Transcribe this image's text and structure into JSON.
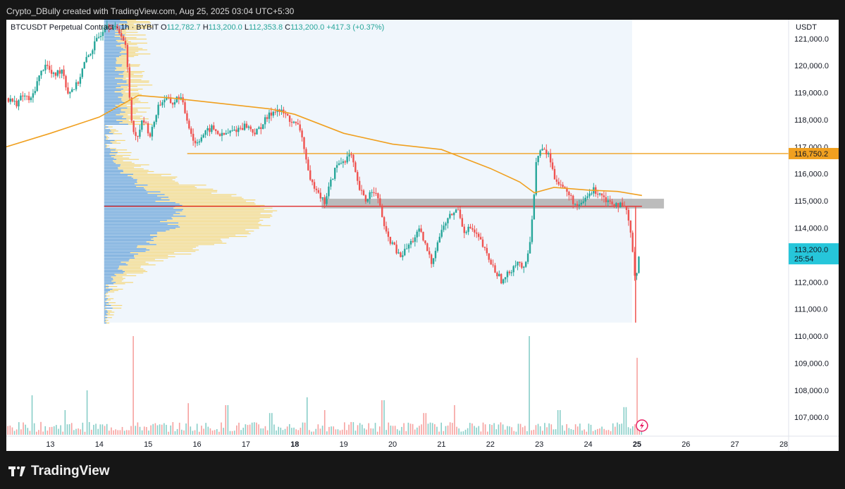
{
  "header": {
    "credit": "Crypto_DBully created with TradingView.com, Aug 25, 2025 03:04 UTC+5:30"
  },
  "legend": {
    "symbol": "BTCUSDT Perpetual Contract · 1h · BYBIT",
    "open_label": "O",
    "open": "112,782.7",
    "high_label": "H",
    "high": "113,200.0",
    "low_label": "L",
    "low": "112,353.8",
    "close_label": "C",
    "close": "113,200.0",
    "change": "+417.3 (+0.37%)"
  },
  "footer": {
    "brand": "TradingView"
  },
  "colors": {
    "up": "#26a69a",
    "down": "#ef5350",
    "ma": "#f0a020",
    "level": "#f0a020",
    "poc": "#e03c3c",
    "zone": "#b0b0b0",
    "profile_up": "#5b9bd5",
    "profile_down": "#f5d77a",
    "last_price": "#26c6da"
  },
  "chart_data": {
    "type": "candlestick",
    "currency": "USDT",
    "y_ticks": [
      121000,
      120000,
      119000,
      118000,
      117000,
      116000,
      115000,
      114000,
      113000,
      112000,
      111000,
      110000,
      109000,
      108000,
      107000
    ],
    "y_tick_labels": [
      "121,000.0",
      "120,000.0",
      "119,000.0",
      "118,000.0",
      "117,000.0",
      "116,000.0",
      "115,000.0",
      "114,000.0",
      "113,000.0",
      "112,000.0",
      "111,000.0",
      "110,000.0",
      "109,000.0",
      "108,000.0",
      "107,000.0"
    ],
    "ylim": [
      106300,
      121700
    ],
    "x_range_days": [
      12.1,
      28.1
    ],
    "x_ticks": [
      13,
      14,
      15,
      16,
      17,
      18,
      19,
      20,
      21,
      22,
      23,
      24,
      25,
      26,
      27,
      28
    ],
    "x_tick_labels": [
      "13",
      "14",
      "15",
      "16",
      "17",
      "18",
      "19",
      "20",
      "21",
      "22",
      "23",
      "24",
      "25",
      "26",
      "27",
      "28"
    ],
    "bold_ticks": [
      "18",
      "25"
    ],
    "price_path": [
      [
        12.1,
        118.8
      ],
      [
        12.3,
        118.6
      ],
      [
        12.45,
        118.9
      ],
      [
        12.6,
        118.7
      ],
      [
        12.75,
        119.5
      ],
      [
        12.9,
        120.1
      ],
      [
        13.05,
        119.6
      ],
      [
        13.25,
        119.9
      ],
      [
        13.35,
        119.0
      ],
      [
        13.55,
        119.3
      ],
      [
        13.7,
        120.1
      ],
      [
        13.85,
        120.6
      ],
      [
        14.0,
        121.1
      ],
      [
        14.15,
        121.6
      ],
      [
        14.3,
        121.4
      ],
      [
        14.45,
        121.2
      ],
      [
        14.55,
        120.6
      ],
      [
        14.65,
        118.1
      ],
      [
        14.75,
        117.3
      ],
      [
        14.9,
        118.0
      ],
      [
        15.05,
        117.4
      ],
      [
        15.2,
        118.5
      ],
      [
        15.35,
        118.8
      ],
      [
        15.5,
        118.6
      ],
      [
        15.65,
        118.9
      ],
      [
        15.75,
        118.3
      ],
      [
        15.85,
        117.7
      ],
      [
        15.95,
        117.1
      ],
      [
        16.1,
        117.4
      ],
      [
        16.3,
        117.7
      ],
      [
        16.5,
        117.4
      ],
      [
        16.75,
        117.6
      ],
      [
        17.0,
        117.8
      ],
      [
        17.2,
        117.5
      ],
      [
        17.4,
        118.0
      ],
      [
        17.6,
        118.4
      ],
      [
        17.8,
        118.2
      ],
      [
        17.95,
        117.9
      ],
      [
        18.1,
        117.7
      ],
      [
        18.2,
        116.9
      ],
      [
        18.3,
        115.7
      ],
      [
        18.45,
        115.5
      ],
      [
        18.6,
        114.9
      ],
      [
        18.7,
        115.5
      ],
      [
        18.85,
        116.3
      ],
      [
        19.0,
        116.5
      ],
      [
        19.15,
        116.7
      ],
      [
        19.3,
        115.5
      ],
      [
        19.45,
        115.0
      ],
      [
        19.6,
        115.5
      ],
      [
        19.75,
        114.8
      ],
      [
        19.85,
        113.8
      ],
      [
        20.0,
        113.4
      ],
      [
        20.15,
        112.9
      ],
      [
        20.35,
        113.4
      ],
      [
        20.55,
        113.9
      ],
      [
        20.7,
        113.2
      ],
      [
        20.8,
        112.7
      ],
      [
        20.9,
        113.4
      ],
      [
        21.05,
        114.1
      ],
      [
        21.2,
        114.5
      ],
      [
        21.35,
        114.7
      ],
      [
        21.45,
        113.9
      ],
      [
        21.6,
        114.0
      ],
      [
        21.8,
        113.5
      ],
      [
        21.95,
        112.9
      ],
      [
        22.1,
        112.4
      ],
      [
        22.25,
        112.0
      ],
      [
        22.4,
        112.4
      ],
      [
        22.55,
        112.8
      ],
      [
        22.7,
        112.4
      ],
      [
        22.8,
        113.4
      ],
      [
        22.88,
        114.9
      ],
      [
        22.95,
        116.7
      ],
      [
        23.05,
        116.9
      ],
      [
        23.2,
        116.7
      ],
      [
        23.3,
        115.9
      ],
      [
        23.45,
        115.6
      ],
      [
        23.65,
        115.1
      ],
      [
        23.8,
        114.7
      ],
      [
        23.95,
        115.1
      ],
      [
        24.1,
        115.4
      ],
      [
        24.25,
        115.3
      ],
      [
        24.4,
        115.0
      ],
      [
        24.6,
        114.9
      ],
      [
        24.8,
        114.6
      ],
      [
        24.93,
        112.9
      ],
      [
        24.97,
        111.9
      ],
      [
        25.02,
        112.8
      ],
      [
        25.05,
        113.2
      ]
    ],
    "volume_spikes": [
      [
        14.68,
        1.0
      ],
      [
        22.8,
        1.0
      ],
      [
        25.0,
        0.78
      ],
      [
        13.75,
        0.45
      ],
      [
        12.6,
        0.4
      ],
      [
        18.25,
        0.38
      ],
      [
        19.8,
        0.35
      ],
      [
        21.25,
        0.3
      ],
      [
        16.6,
        0.3
      ],
      [
        15.8,
        0.32
      ],
      [
        24.75,
        0.28
      ],
      [
        18.6,
        0.25
      ],
      [
        17.5,
        0.22
      ],
      [
        13.3,
        0.25
      ],
      [
        20.65,
        0.22
      ],
      [
        23.4,
        0.25
      ]
    ],
    "ema_path": [
      [
        12.1,
        117.0
      ],
      [
        13.0,
        117.5
      ],
      [
        14.0,
        118.1
      ],
      [
        14.8,
        118.9
      ],
      [
        15.5,
        118.8
      ],
      [
        16.5,
        118.6
      ],
      [
        17.5,
        118.4
      ],
      [
        18.0,
        118.2
      ],
      [
        19.0,
        117.5
      ],
      [
        20.0,
        117.1
      ],
      [
        21.0,
        116.9
      ],
      [
        22.0,
        116.2
      ],
      [
        22.6,
        115.7
      ],
      [
        22.9,
        115.3
      ],
      [
        23.3,
        115.5
      ],
      [
        24.0,
        115.4
      ],
      [
        24.6,
        115.35
      ],
      [
        25.1,
        115.2
      ]
    ],
    "level_116750": 116750.2,
    "level_label": "116,750.2",
    "poc_price": 114800,
    "zone": [
      114720,
      115080
    ],
    "last_price": 113200,
    "last_price_label": "113,200.0",
    "countdown": "25:54",
    "volume_profile": {
      "top": 121800,
      "bottom": 110500,
      "x_start_day": 14.1,
      "x_end_day": 24.9
    }
  }
}
